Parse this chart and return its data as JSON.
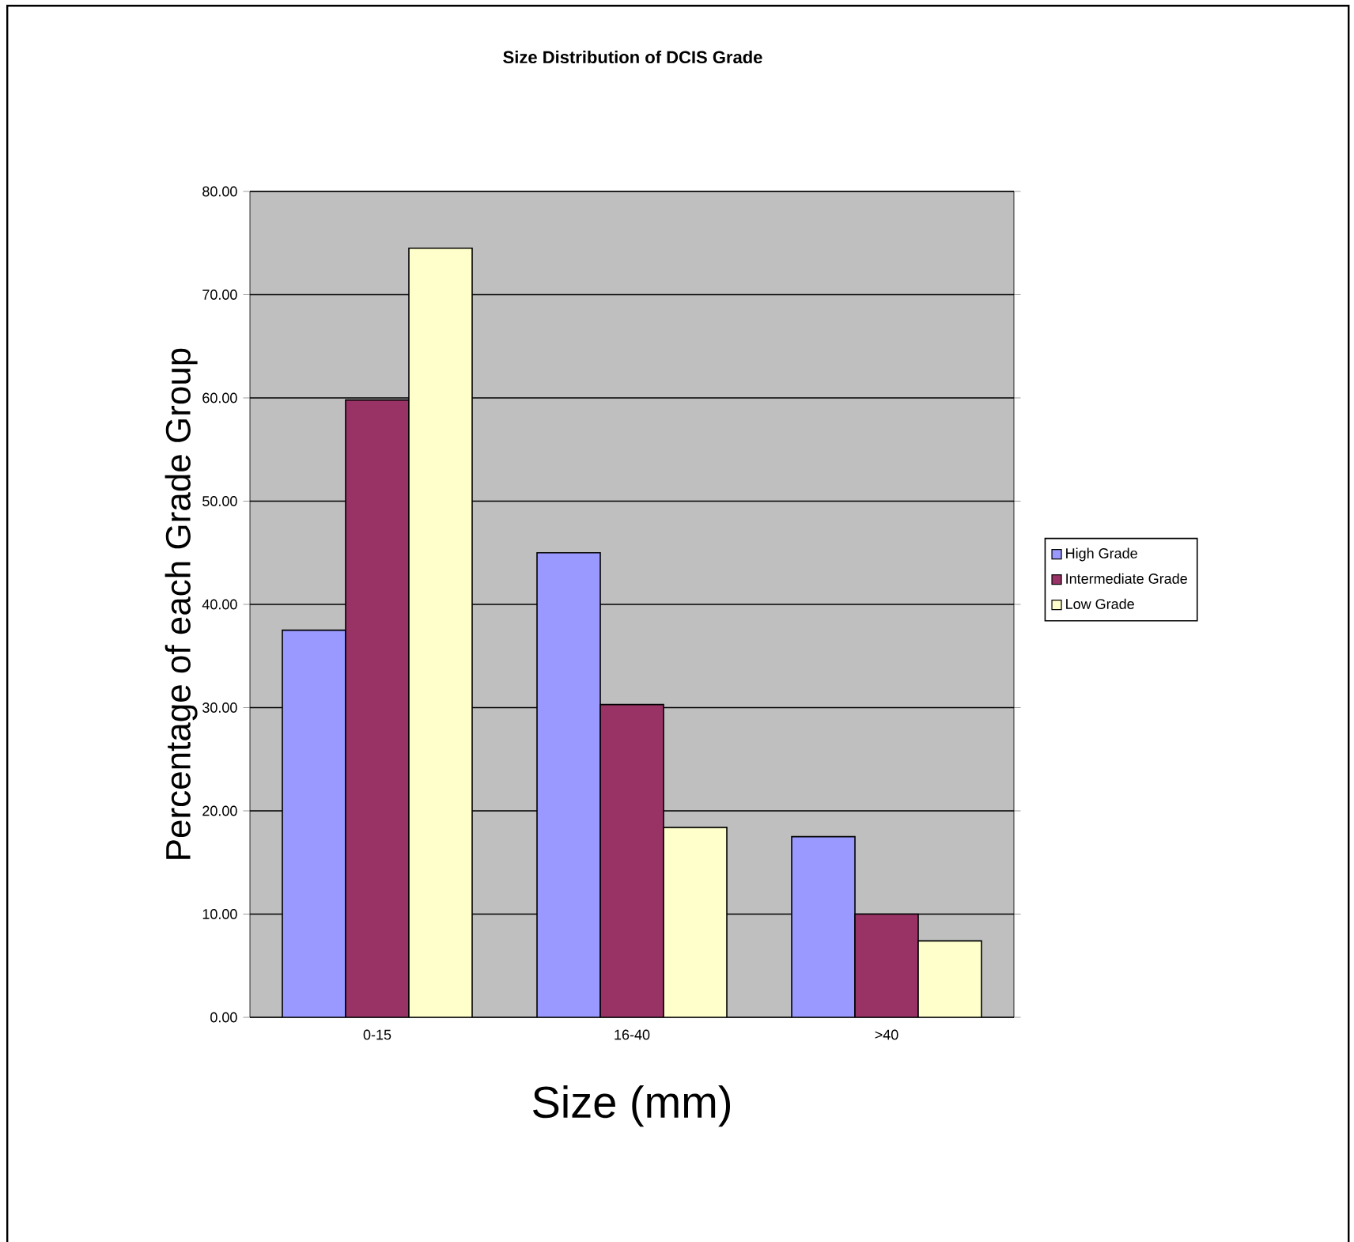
{
  "chart_data": {
    "type": "bar",
    "title": "Size Distribution of DCIS Grade",
    "xlabel": "Size (mm)",
    "ylabel": "Percentage of each Grade Group",
    "categories": [
      "0-15",
      "16-40",
      ">40"
    ],
    "series": [
      {
        "name": "High Grade",
        "color": "#9999ff",
        "values": [
          37.5,
          45.0,
          17.5
        ]
      },
      {
        "name": "Intermediate Grade",
        "color": "#993366",
        "values": [
          59.8,
          30.3,
          10.0
        ]
      },
      {
        "name": "Low Grade",
        "color": "#ffffcc",
        "values": [
          74.5,
          18.4,
          7.4
        ]
      }
    ],
    "ylim": [
      0,
      80
    ],
    "yticks": [
      {
        "value": 0,
        "label": "0.00"
      },
      {
        "value": 10,
        "label": "10.00"
      },
      {
        "value": 20,
        "label": "20.00"
      },
      {
        "value": 30,
        "label": "30.00"
      },
      {
        "value": 40,
        "label": "40.00"
      },
      {
        "value": 50,
        "label": "50.00"
      },
      {
        "value": 60,
        "label": "60.00"
      },
      {
        "value": 70,
        "label": "70.00"
      },
      {
        "value": 80,
        "label": "80.00"
      }
    ],
    "grid": "y",
    "legend": "right"
  }
}
